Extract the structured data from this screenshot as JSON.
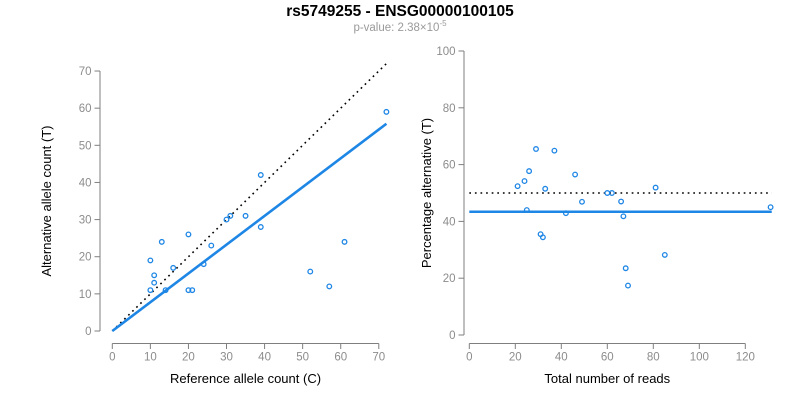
{
  "figure": {
    "title": "rs5749255 - ENSG00000100105",
    "p_value_base": "p-value: 2.38×10",
    "p_value_exponent": "-5"
  },
  "colors": {
    "accent_blue": "#1e86e5",
    "reference_line_black": "#000000",
    "tick_label_gray": "#8c8c8c",
    "axis_gray": "#7f7f7f",
    "axis_title_black": "#000000",
    "subtitle_gray": "#9a9a9a"
  },
  "chart_data": [
    {
      "id": "allele-counts-scatter",
      "type": "scatter",
      "title": "",
      "xlabel": "Reference allele count (C)",
      "ylabel": "Alternative allele count (T)",
      "xlim": [
        0,
        72
      ],
      "ylim": [
        0,
        72
      ],
      "xticks": [
        0,
        10,
        20,
        30,
        40,
        50,
        60,
        70
      ],
      "yticks": [
        0,
        10,
        20,
        30,
        40,
        50,
        60,
        70
      ],
      "grid": false,
      "legend": "none",
      "point_color": "#1e86e5",
      "points": [
        [
          10,
          11
        ],
        [
          10,
          19
        ],
        [
          11,
          13
        ],
        [
          11,
          15
        ],
        [
          13,
          24
        ],
        [
          14,
          11
        ],
        [
          16,
          17
        ],
        [
          20,
          11
        ],
        [
          20,
          26
        ],
        [
          21,
          11
        ],
        [
          24,
          18
        ],
        [
          26,
          23
        ],
        [
          30,
          30
        ],
        [
          31,
          31
        ],
        [
          35,
          31
        ],
        [
          39,
          28
        ],
        [
          39,
          42
        ],
        [
          52,
          16
        ],
        [
          57,
          12
        ],
        [
          61,
          24
        ],
        [
          72,
          59
        ]
      ],
      "lines": [
        {
          "name": "identity-line",
          "style": "dotted",
          "color": "#000000",
          "x1": 0,
          "y1": 0,
          "x2": 72,
          "y2": 72
        },
        {
          "name": "regression-line",
          "style": "solid",
          "color": "#1e86e5",
          "x1": 0,
          "y1": 0,
          "x2": 72,
          "y2": 55.8
        }
      ]
    },
    {
      "id": "percentage-vs-reads-scatter",
      "type": "scatter",
      "title": "",
      "xlabel": "Total number of reads",
      "ylabel": "Percentage alternative (T)",
      "xlim": [
        0,
        132
      ],
      "ylim": [
        0,
        100
      ],
      "xticks": [
        0,
        20,
        40,
        60,
        80,
        100,
        120
      ],
      "yticks": [
        0,
        20,
        40,
        60,
        80,
        100
      ],
      "grid": false,
      "legend": "none",
      "point_color": "#1e86e5",
      "points": [
        [
          21,
          52.4
        ],
        [
          29,
          65.5
        ],
        [
          24,
          54.2
        ],
        [
          26,
          57.7
        ],
        [
          37,
          64.9
        ],
        [
          25,
          44
        ],
        [
          33,
          51.5
        ],
        [
          31,
          35.5
        ],
        [
          46,
          56.5
        ],
        [
          32,
          34.4
        ],
        [
          42,
          42.9
        ],
        [
          49,
          46.9
        ],
        [
          60,
          50
        ],
        [
          62,
          50
        ],
        [
          66,
          47
        ],
        [
          67,
          41.8
        ],
        [
          81,
          51.9
        ],
        [
          68,
          23.5
        ],
        [
          69,
          17.4
        ],
        [
          85,
          28.2
        ],
        [
          131,
          45
        ]
      ],
      "lines": [
        {
          "name": "fifty-percent-line",
          "style": "dotted",
          "color": "#000000",
          "x1": 0,
          "y1": 50,
          "x2": 131.5,
          "y2": 50
        },
        {
          "name": "mean-percentage-line",
          "style": "solid",
          "color": "#1e86e5",
          "x1": 0,
          "y1": 43.4,
          "x2": 131.5,
          "y2": 43.4
        }
      ]
    }
  ]
}
